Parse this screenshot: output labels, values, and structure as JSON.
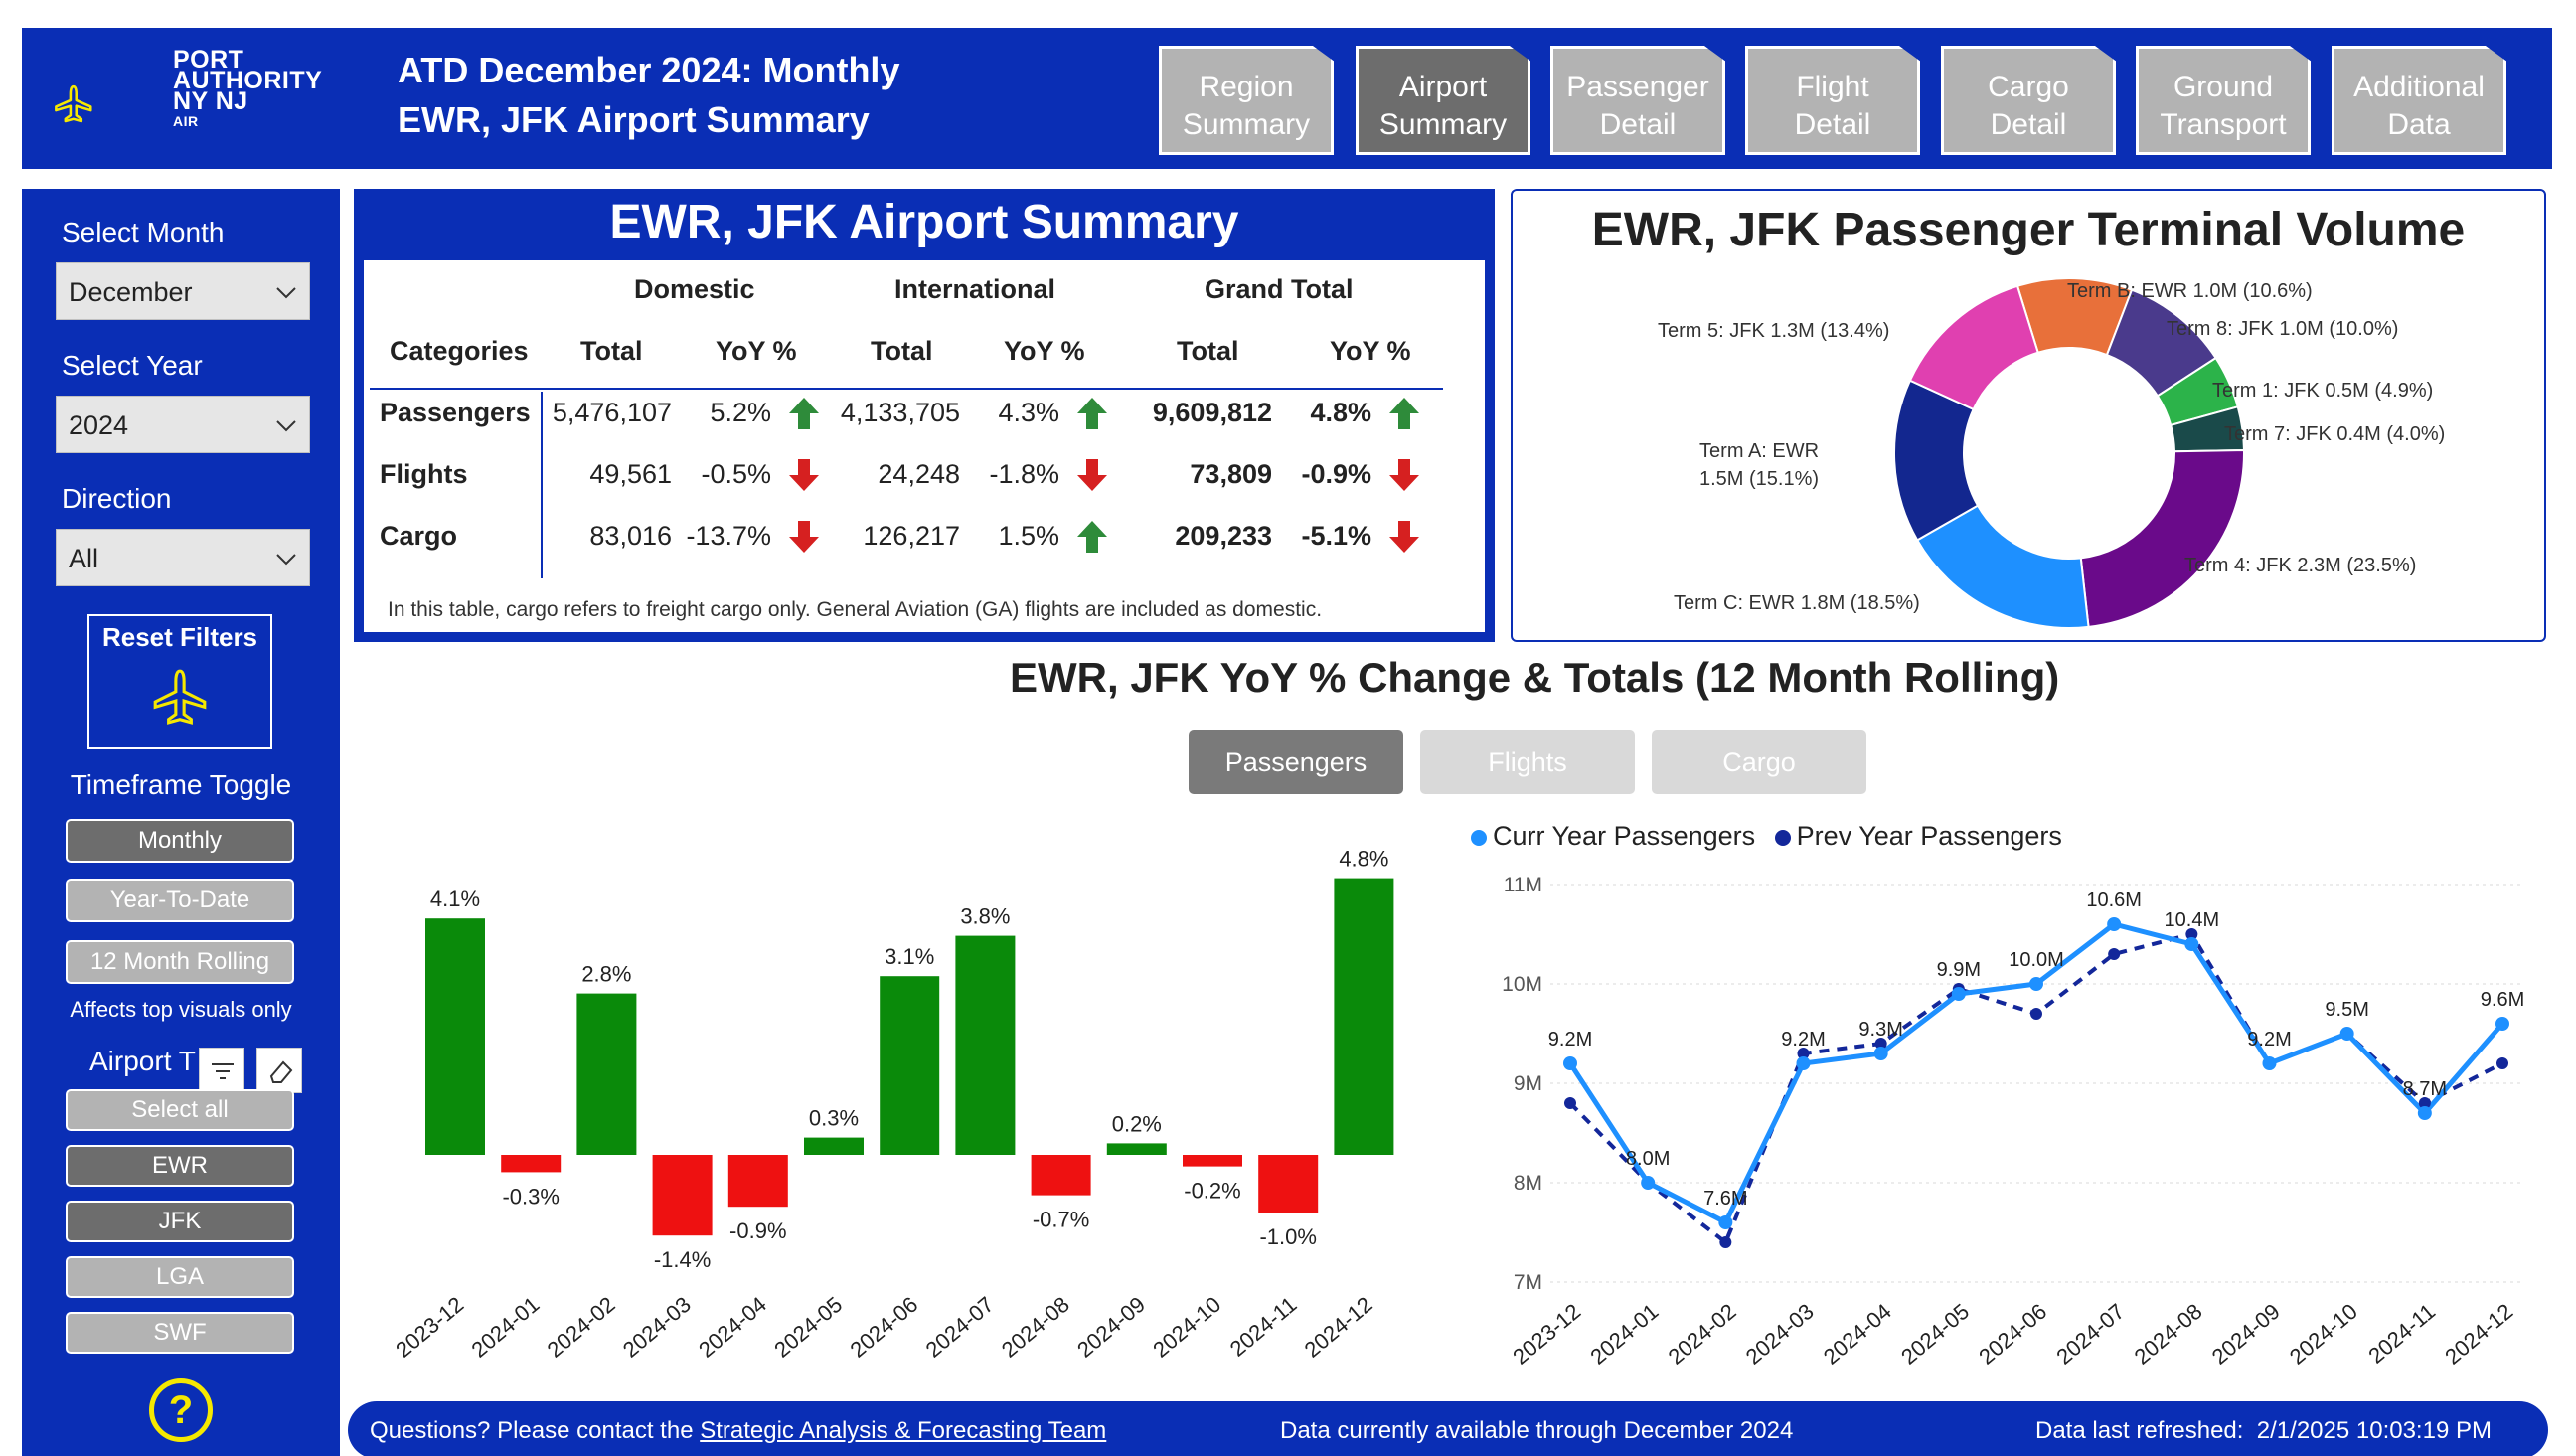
{
  "header": {
    "logo_line1": "PORT",
    "logo_line2": "AUTHORITY",
    "logo_line3": "NY NJ",
    "logo_line4": "AIR",
    "title_line1": "ATD December 2024: Monthly",
    "title_line2": "EWR, JFK Airport Summary",
    "nav": [
      {
        "line1": "Region",
        "line2": "Summary",
        "active": false
      },
      {
        "line1": "Airport",
        "line2": "Summary",
        "active": true
      },
      {
        "line1": "Passenger",
        "line2": "Detail",
        "active": false
      },
      {
        "line1": "Flight",
        "line2": "Detail",
        "active": false
      },
      {
        "line1": "Cargo",
        "line2": "Detail",
        "active": false
      },
      {
        "line1": "Ground",
        "line2": "Transport",
        "active": false
      },
      {
        "line1": "Additional",
        "line2": "Data",
        "active": false
      }
    ]
  },
  "sidebar": {
    "month_label": "Select Month",
    "month_value": "December",
    "year_label": "Select Year",
    "year_value": "2024",
    "direction_label": "Direction",
    "direction_value": "All",
    "reset_label": "Reset Filters",
    "timeframe_label": "Timeframe Toggle",
    "timeframe_options": [
      "Monthly",
      "Year-To-Date",
      "12 Month Rolling"
    ],
    "affects_note": "Affects top visuals only",
    "airport_label": "Airport T",
    "airport_options": [
      "Select all",
      "EWR",
      "JFK",
      "LGA",
      "SWF"
    ],
    "help": "?"
  },
  "summary": {
    "title": "EWR, JFK Airport Summary",
    "group_headers": [
      "Domestic",
      "International",
      "Grand Total"
    ],
    "col_headers": [
      "Categories",
      "Total",
      "YoY %",
      "Total",
      "YoY %",
      "Total",
      "YoY %"
    ],
    "rows": [
      {
        "name": "Passengers",
        "dom_total": "5,476,107",
        "dom_yoy": "5.2%",
        "dom_dir": "up",
        "int_total": "4,133,705",
        "int_yoy": "4.3%",
        "int_dir": "up",
        "gt_total": "9,609,812",
        "gt_yoy": "4.8%",
        "gt_dir": "up"
      },
      {
        "name": "Flights",
        "dom_total": "49,561",
        "dom_yoy": "-0.5%",
        "dom_dir": "down",
        "int_total": "24,248",
        "int_yoy": "-1.8%",
        "int_dir": "down",
        "gt_total": "73,809",
        "gt_yoy": "-0.9%",
        "gt_dir": "down"
      },
      {
        "name": "Cargo",
        "dom_total": "83,016",
        "dom_yoy": "-13.7%",
        "dom_dir": "down",
        "int_total": "126,217",
        "int_yoy": "1.5%",
        "int_dir": "up",
        "gt_total": "209,233",
        "gt_yoy": "-5.1%",
        "gt_dir": "down"
      }
    ],
    "footnote": "In this table, cargo refers to freight cargo only. General Aviation (GA) flights are included as domestic."
  },
  "terminal": {
    "title": "EWR, JFK Passenger Terminal Volume",
    "chart_data": {
      "type": "pie",
      "slices": [
        {
          "label": "Term B: EWR 1.0M (10.6%)",
          "value": 10.6,
          "color": "#e8703a"
        },
        {
          "label": "Term 8: JFK 1.0M (10.0%)",
          "value": 10.0,
          "color": "#4a3a8c"
        },
        {
          "label": "Term 1: JFK 0.5M (4.9%)",
          "value": 4.9,
          "color": "#2cb34a"
        },
        {
          "label": "Term 7: JFK 0.4M (4.0%)",
          "value": 4.0,
          "color": "#1a4a4a"
        },
        {
          "label": "Term 4: JFK 2.3M (23.5%)",
          "value": 23.5,
          "color": "#6a0a8a"
        },
        {
          "label": "Term C: EWR 1.8M (18.5%)",
          "value": 18.5,
          "color": "#1e90ff"
        },
        {
          "label_line1": "Term A: EWR",
          "label_line2": "1.5M (15.1%)",
          "value": 15.1,
          "color": "#13278f"
        },
        {
          "label": "Term 5: JFK 1.3M (13.4%)",
          "value": 13.4,
          "color": "#e040b0"
        }
      ]
    }
  },
  "rolling": {
    "title": "EWR, JFK YoY % Change & Totals (12 Month Rolling)",
    "toggles": [
      {
        "label": "Passengers",
        "on": true
      },
      {
        "label": "Flights",
        "on": false
      },
      {
        "label": "Cargo",
        "on": false
      }
    ],
    "legend_curr": "Curr Year Passengers",
    "legend_prev": "Prev Year Passengers",
    "colors": {
      "curr": "#1e90ff",
      "prev": "#13279a",
      "pos": "#0a8a0a",
      "neg": "#ee1111"
    }
  },
  "chart_data": [
    {
      "type": "bar",
      "categories": [
        "2023-12",
        "2024-01",
        "2024-02",
        "2024-03",
        "2024-04",
        "2024-05",
        "2024-06",
        "2024-07",
        "2024-08",
        "2024-09",
        "2024-10",
        "2024-11",
        "2024-12"
      ],
      "values": [
        4.1,
        -0.3,
        2.8,
        -1.4,
        -0.9,
        0.3,
        3.1,
        3.8,
        -0.7,
        0.2,
        -0.2,
        -1.0,
        4.8
      ],
      "labels": [
        "4.1%",
        "-0.3%",
        "2.8%",
        "-1.4%",
        "-0.9%",
        "0.3%",
        "3.1%",
        "3.8%",
        "-0.7%",
        "0.2%",
        "-0.2%",
        "-1.0%",
        "4.8%"
      ]
    },
    {
      "type": "line",
      "x": [
        "2023-12",
        "2024-01",
        "2024-02",
        "2024-03",
        "2024-04",
        "2024-05",
        "2024-06",
        "2024-07",
        "2024-08",
        "2024-09",
        "2024-10",
        "2024-11",
        "2024-12"
      ],
      "ylim": [
        7,
        11
      ],
      "yticks": [
        "7M",
        "8M",
        "9M",
        "10M",
        "11M"
      ],
      "series": [
        {
          "name": "Curr Year Passengers",
          "values": [
            9.2,
            8.0,
            7.6,
            9.2,
            9.3,
            9.9,
            10.0,
            10.6,
            10.4,
            9.2,
            9.5,
            8.7,
            9.6
          ],
          "labels": [
            "9.2M",
            "8.0M",
            "7.6M",
            "9.2M",
            "9.3M",
            "9.9M",
            "10.0M",
            "10.6M",
            "10.4M",
            "9.2M",
            "9.5M",
            "8.7M",
            "9.6M"
          ]
        },
        {
          "name": "Prev Year Passengers",
          "values": [
            8.8,
            8.0,
            7.4,
            9.3,
            9.4,
            9.95,
            9.7,
            10.3,
            10.5,
            9.2,
            9.5,
            8.8,
            9.2
          ]
        }
      ]
    }
  ],
  "footer": {
    "contact_prefix": "Questions? Please contact the ",
    "contact_link": "Strategic Analysis & Forecasting Team",
    "availability": "Data currently available through December 2024",
    "refreshed_label": "Data last refreshed:",
    "refreshed_value": "2/1/2025 10:03:19 PM"
  }
}
